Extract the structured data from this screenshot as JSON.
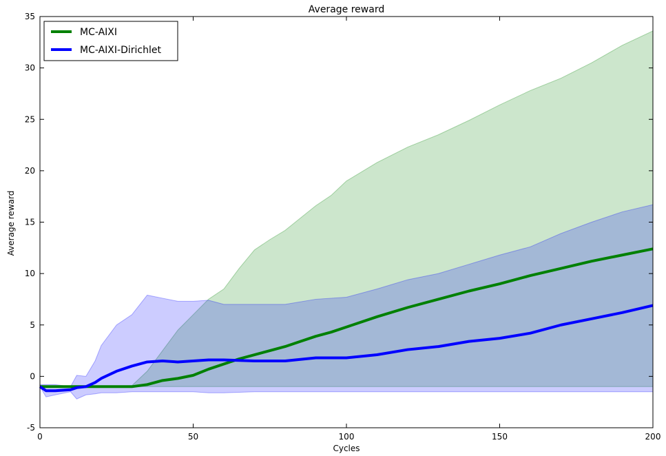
{
  "chart_data": {
    "type": "line",
    "title": "Average reward",
    "xlabel": "Cycles",
    "ylabel": "Average reward",
    "xlim": [
      0,
      200
    ],
    "ylim": [
      -5,
      35
    ],
    "xticks": [
      0,
      50,
      100,
      150,
      200
    ],
    "yticks": [
      -5,
      0,
      5,
      10,
      15,
      20,
      25,
      30,
      35
    ],
    "legend_position": "top-left",
    "grid": false,
    "series": [
      {
        "name": "MC-AIXI",
        "color": "#008000",
        "band_color": "#008000",
        "x": [
          0,
          10,
          20,
          30,
          35,
          40,
          45,
          50,
          55,
          60,
          65,
          70,
          75,
          80,
          85,
          90,
          95,
          100,
          110,
          120,
          130,
          140,
          150,
          160,
          170,
          180,
          190,
          200
        ],
        "values": [
          -1.0,
          -1.0,
          -1.0,
          -1.0,
          -0.8,
          -0.4,
          -0.2,
          0.1,
          0.7,
          1.2,
          1.7,
          2.1,
          2.5,
          2.9,
          3.4,
          3.9,
          4.3,
          4.8,
          5.8,
          6.7,
          7.5,
          8.3,
          9.0,
          9.8,
          10.5,
          11.2,
          11.8,
          12.4
        ],
        "upper": [
          -0.9,
          -1.0,
          -1.0,
          -0.9,
          0.5,
          2.5,
          4.5,
          6.0,
          7.5,
          8.5,
          10.5,
          12.3,
          13.3,
          14.2,
          15.4,
          16.6,
          17.6,
          19.0,
          20.8,
          22.3,
          23.5,
          24.9,
          26.4,
          27.8,
          29.0,
          30.5,
          32.2,
          33.6
        ],
        "lower": [
          -1.0,
          -1.0,
          -1.0,
          -1.0,
          -1.0,
          -1.0,
          -1.0,
          -1.0,
          -1.0,
          -1.0,
          -1.0,
          -1.0,
          -1.0,
          -1.0,
          -1.0,
          -1.0,
          -1.0,
          -1.0,
          -1.0,
          -1.0,
          -1.0,
          -1.0,
          -1.0,
          -1.0,
          -1.0,
          -1.0,
          -1.0,
          -1.0
        ]
      },
      {
        "name": "MC-AIXI-Dirichlet",
        "color": "#0000ff",
        "band_color": "#0000ff",
        "x": [
          0,
          2,
          5,
          10,
          12,
          15,
          18,
          20,
          25,
          30,
          35,
          40,
          45,
          50,
          55,
          60,
          70,
          80,
          90,
          100,
          110,
          120,
          130,
          140,
          150,
          160,
          170,
          180,
          190,
          200
        ],
        "values": [
          -1.0,
          -1.4,
          -1.4,
          -1.3,
          -1.1,
          -1.0,
          -0.6,
          -0.2,
          0.5,
          1.0,
          1.4,
          1.5,
          1.4,
          1.5,
          1.6,
          1.6,
          1.5,
          1.5,
          1.8,
          1.8,
          2.1,
          2.6,
          2.9,
          3.4,
          3.7,
          4.2,
          5.0,
          5.6,
          6.2,
          6.9
        ],
        "upper": [
          -0.8,
          -0.8,
          -0.8,
          -1.0,
          0.1,
          0.0,
          1.5,
          3.0,
          5.0,
          6.0,
          7.9,
          7.6,
          7.3,
          7.3,
          7.4,
          7.0,
          7.0,
          7.0,
          7.5,
          7.7,
          8.5,
          9.4,
          10.0,
          10.9,
          11.8,
          12.6,
          13.9,
          15.0,
          16.0,
          16.7
        ],
        "lower": [
          -1.0,
          -2.0,
          -1.8,
          -1.5,
          -2.2,
          -1.8,
          -1.7,
          -1.6,
          -1.6,
          -1.5,
          -1.5,
          -1.5,
          -1.5,
          -1.5,
          -1.6,
          -1.6,
          -1.5,
          -1.5,
          -1.5,
          -1.5,
          -1.5,
          -1.5,
          -1.5,
          -1.5,
          -1.5,
          -1.5,
          -1.5,
          -1.5,
          -1.5,
          -1.5
        ]
      }
    ]
  }
}
